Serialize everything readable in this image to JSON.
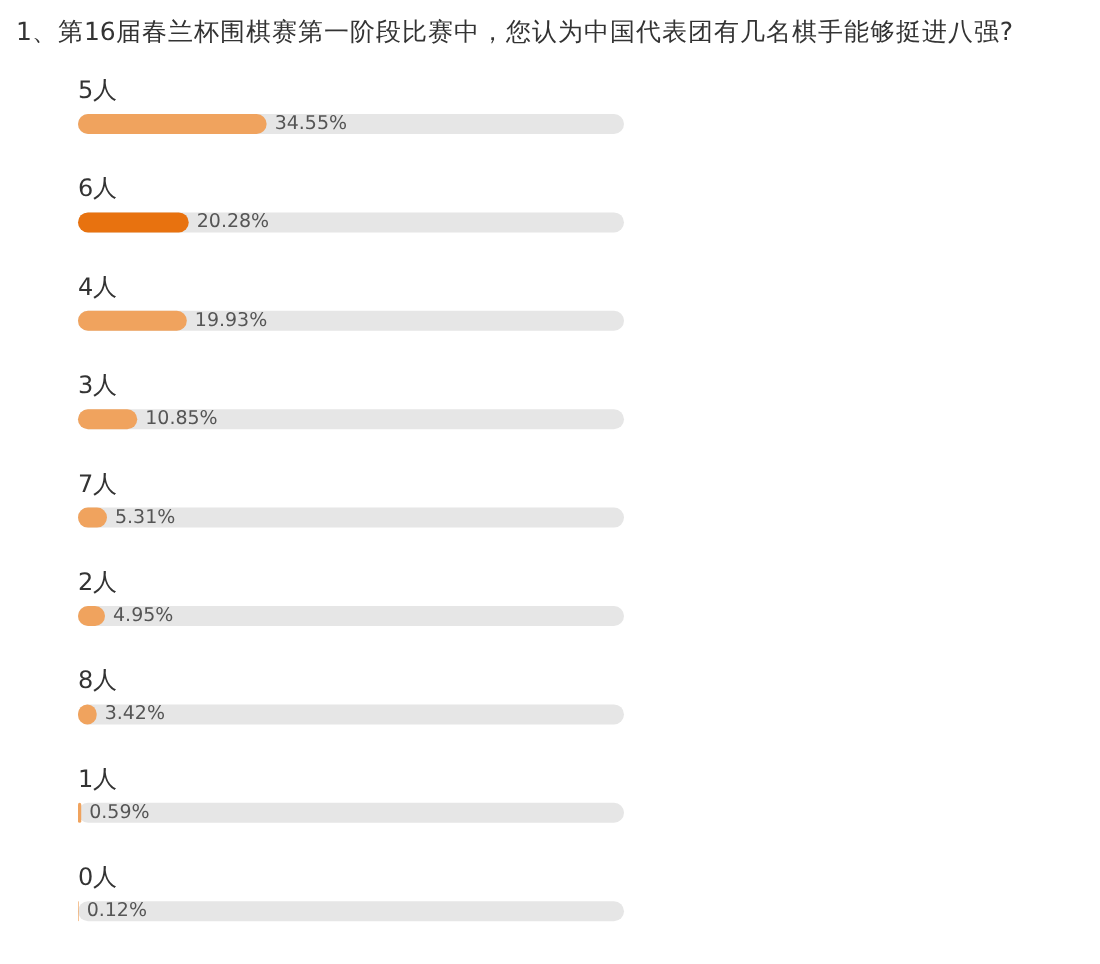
{
  "chart_data": {
    "type": "bar",
    "orientation": "horizontal",
    "title": "1、第16届春兰杯围棋赛第一阶段比赛中，您认为中国代表团有几名棋手能够挺进八强?",
    "categories": [
      "5人",
      "6人",
      "4人",
      "3人",
      "7人",
      "2人",
      "8人",
      "1人",
      "0人"
    ],
    "values": [
      34.55,
      20.28,
      19.93,
      10.85,
      5.31,
      4.95,
      3.42,
      0.59,
      0.12
    ],
    "value_labels": [
      "34.55%",
      "20.28%",
      "19.93%",
      "10.85%",
      "5.31%",
      "4.95%",
      "3.42%",
      "0.59%",
      "0.12%"
    ],
    "colors": [
      "#f0a35e",
      "#e8720f",
      "#f0a35e",
      "#f0a35e",
      "#f0a35e",
      "#f0a35e",
      "#f0a35e",
      "#f0a35e",
      "#f0a35e"
    ],
    "xlim": [
      0,
      100
    ]
  }
}
